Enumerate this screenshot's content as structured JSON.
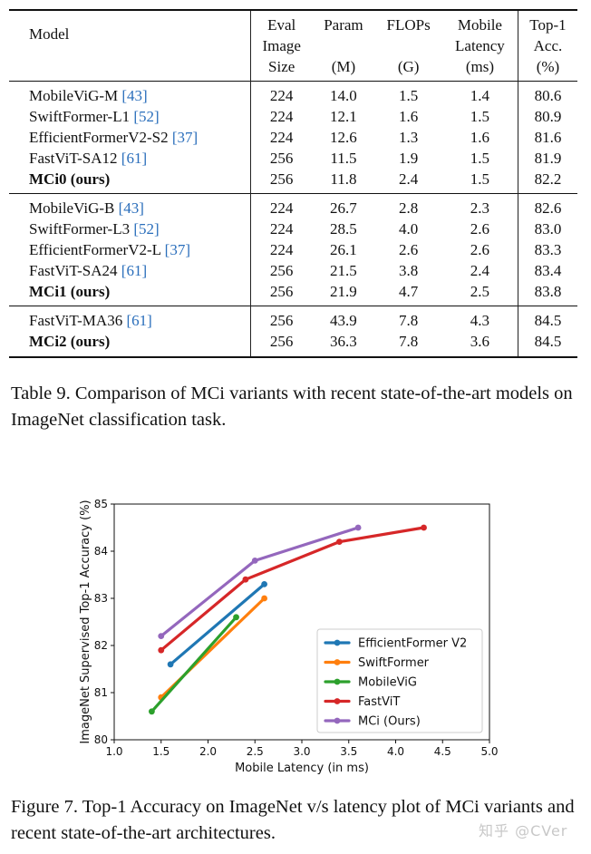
{
  "table": {
    "header": {
      "model": "Model",
      "eval": [
        "Eval",
        "Image",
        "Size"
      ],
      "param": [
        "Param",
        "(M)"
      ],
      "flops": [
        "FLOPs",
        "(G)"
      ],
      "latency": [
        "Mobile",
        "Latency",
        "(ms)"
      ],
      "top1": [
        "Top-1",
        "Acc.",
        "(%)"
      ]
    },
    "groups": [
      [
        {
          "model": "MobileViG-M",
          "cite": "[43]",
          "size": "224",
          "param": "14.0",
          "flops": "1.5",
          "latency": "1.4",
          "acc": "80.6",
          "bold": false
        },
        {
          "model": "SwiftFormer-L1",
          "cite": "[52]",
          "size": "224",
          "param": "12.1",
          "flops": "1.6",
          "latency": "1.5",
          "acc": "80.9",
          "bold": false
        },
        {
          "model": "EfficientFormerV2-S2",
          "cite": "[37]",
          "size": "224",
          "param": "12.6",
          "flops": "1.3",
          "latency": "1.6",
          "acc": "81.6",
          "bold": false
        },
        {
          "model": "FastViT-SA12",
          "cite": "[61]",
          "size": "256",
          "param": "11.5",
          "flops": "1.9",
          "latency": "1.5",
          "acc": "81.9",
          "bold": false
        },
        {
          "model": "MCi0 (ours)",
          "cite": "",
          "size": "256",
          "param": "11.8",
          "flops": "2.4",
          "latency": "1.5",
          "acc": "82.2",
          "bold": true
        }
      ],
      [
        {
          "model": "MobileViG-B",
          "cite": "[43]",
          "size": "224",
          "param": "26.7",
          "flops": "2.8",
          "latency": "2.3",
          "acc": "82.6",
          "bold": false
        },
        {
          "model": "SwiftFormer-L3",
          "cite": "[52]",
          "size": "224",
          "param": "28.5",
          "flops": "4.0",
          "latency": "2.6",
          "acc": "83.0",
          "bold": false
        },
        {
          "model": "EfficientFormerV2-L",
          "cite": "[37]",
          "size": "224",
          "param": "26.1",
          "flops": "2.6",
          "latency": "2.6",
          "acc": "83.3",
          "bold": false
        },
        {
          "model": "FastViT-SA24",
          "cite": "[61]",
          "size": "256",
          "param": "21.5",
          "flops": "3.8",
          "latency": "2.4",
          "acc": "83.4",
          "bold": false
        },
        {
          "model": "MCi1 (ours)",
          "cite": "",
          "size": "256",
          "param": "21.9",
          "flops": "4.7",
          "latency": "2.5",
          "acc": "83.8",
          "bold": true
        }
      ],
      [
        {
          "model": "FastViT-MA36",
          "cite": "[61]",
          "size": "256",
          "param": "43.9",
          "flops": "7.8",
          "latency": "4.3",
          "acc": "84.5",
          "bold": false
        },
        {
          "model": "MCi2 (ours)",
          "cite": "",
          "size": "256",
          "param": "36.3",
          "flops": "7.8",
          "latency": "3.6",
          "acc": "84.5",
          "bold": true
        }
      ]
    ]
  },
  "table_caption": "Table 9. Comparison of MCi variants with recent state-of-the-art models on ImageNet classification task.",
  "figure_caption": "Figure 7. Top-1 Accuracy on ImageNet v/s latency plot of MCi variants and recent state-of-the-art architectures.",
  "watermark": "知乎 @CVer",
  "chart_data": {
    "type": "line",
    "xlabel": "Mobile Latency (in ms)",
    "ylabel": "ImageNet Supervised Top-1 Accuracy (%)",
    "xlim": [
      1.0,
      5.0
    ],
    "ylim": [
      80,
      85
    ],
    "xticks": [
      "1.0",
      "1.5",
      "2.0",
      "2.5",
      "3.0",
      "3.5",
      "4.0",
      "4.5",
      "5.0"
    ],
    "yticks": [
      "80",
      "81",
      "82",
      "83",
      "84",
      "85"
    ],
    "grid": false,
    "legend_position": "lower-right",
    "series": [
      {
        "name": "EfficientFormer V2",
        "color": "#1f77b4",
        "x": [
          1.6,
          2.6
        ],
        "y": [
          81.6,
          83.3
        ]
      },
      {
        "name": "SwiftFormer",
        "color": "#ff7f0e",
        "x": [
          1.5,
          2.6
        ],
        "y": [
          80.9,
          83.0
        ]
      },
      {
        "name": "MobileViG",
        "color": "#2ca02c",
        "x": [
          1.4,
          2.3
        ],
        "y": [
          80.6,
          82.6
        ]
      },
      {
        "name": "FastViT",
        "color": "#d62728",
        "x": [
          1.5,
          2.4,
          3.4,
          4.3
        ],
        "y": [
          81.9,
          83.4,
          84.2,
          84.5
        ]
      },
      {
        "name": "MCi (Ours)",
        "color": "#9467bd",
        "x": [
          1.5,
          2.5,
          3.6
        ],
        "y": [
          82.2,
          83.8,
          84.5
        ]
      }
    ]
  }
}
